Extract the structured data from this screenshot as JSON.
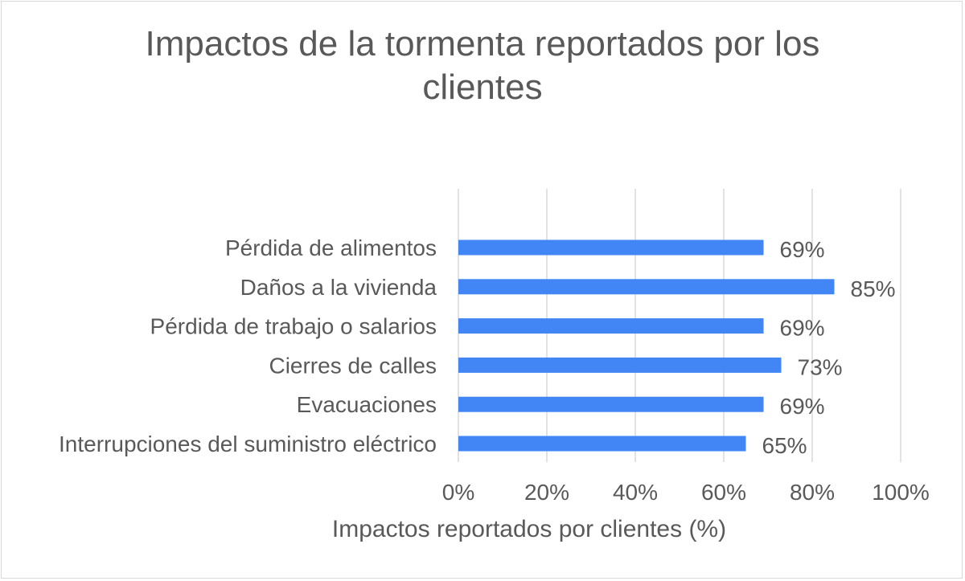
{
  "chart_data": {
    "type": "bar",
    "orientation": "horizontal",
    "title": "Impactos de la tormenta reportados por los clientes",
    "xlabel": "Impactos reportados por clientes (%)",
    "ylabel": "",
    "categories": [
      "Pérdida de alimentos",
      "Daños a la vivienda",
      "Pérdida de trabajo o salarios",
      "Cierres de calles",
      "Evacuaciones",
      "Interrupciones del suministro eléctrico"
    ],
    "values": [
      69,
      85,
      69,
      73,
      69,
      65
    ],
    "data_labels": [
      "69%",
      "85%",
      "69%",
      "73%",
      "69%",
      "65%"
    ],
    "xlim": [
      0,
      100
    ],
    "xticks": [
      "0%",
      "20%",
      "40%",
      "60%",
      "80%",
      "100%"
    ],
    "grid": "vertical",
    "legend": "none",
    "colors": {
      "bar": "#4285f4",
      "grid": "#d9d9d9",
      "text": "#595959"
    }
  }
}
